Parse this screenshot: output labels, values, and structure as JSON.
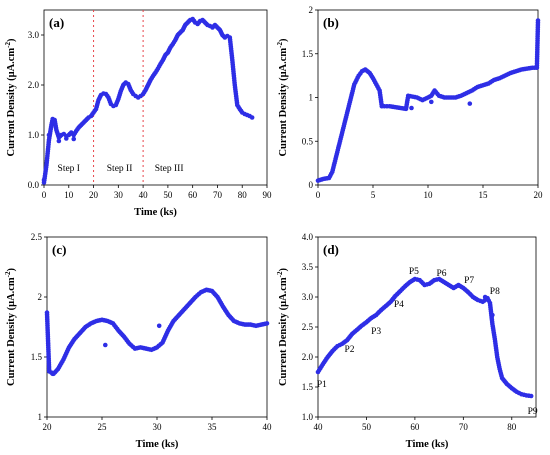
{
  "figure_labels": {
    "time_axis": "Time (ks)",
    "current_axis_html": "Current Density (μA.cm⁻²)"
  },
  "chart_data": [
    {
      "type": "scatter",
      "panel_label": "(a)",
      "xlabel": "Time (ks)",
      "ylabel": "Current Density (μA.cm⁻²)",
      "xlim": [
        0,
        90
      ],
      "ylim": [
        0,
        3.5
      ],
      "xticks": [
        0,
        10,
        20,
        30,
        40,
        50,
        60,
        70,
        80,
        90
      ],
      "yticks": [
        0.0,
        1.0,
        2.0,
        3.0
      ],
      "ytick_labels": [
        "0.0",
        "1.0",
        "2.0",
        "3.0"
      ],
      "color": "#2e2ee6",
      "series": [
        {
          "curve": [
            [
              0,
              0.05
            ],
            [
              1,
              0.4
            ],
            [
              2,
              0.9
            ],
            [
              3,
              1.2
            ],
            [
              3.5,
              1.32
            ],
            [
              4.3,
              1.3
            ],
            [
              5,
              1.1
            ],
            [
              6,
              0.95
            ],
            [
              7,
              1.0
            ],
            [
              8,
              1.02
            ],
            [
              9,
              0.98
            ],
            [
              10,
              1.0
            ],
            [
              11,
              1.05
            ],
            [
              12,
              1.0
            ],
            [
              13,
              1.08
            ],
            [
              14,
              1.15
            ],
            [
              15,
              1.2
            ],
            [
              16,
              1.25
            ],
            [
              17,
              1.3
            ],
            [
              18,
              1.35
            ],
            [
              19,
              1.38
            ],
            [
              20,
              1.45
            ],
            [
              21,
              1.52
            ],
            [
              22,
              1.7
            ],
            [
              23,
              1.8
            ],
            [
              24,
              1.83
            ],
            [
              25,
              1.82
            ],
            [
              26,
              1.75
            ],
            [
              27,
              1.62
            ],
            [
              28,
              1.58
            ],
            [
              29,
              1.6
            ],
            [
              30,
              1.72
            ],
            [
              31,
              1.88
            ],
            [
              32,
              2.0
            ],
            [
              33,
              2.05
            ],
            [
              34,
              2.02
            ],
            [
              35,
              1.9
            ],
            [
              36,
              1.82
            ],
            [
              37,
              1.78
            ],
            [
              38,
              1.75
            ],
            [
              39,
              1.78
            ],
            [
              40,
              1.82
            ],
            [
              41,
              1.9
            ],
            [
              42,
              2.0
            ],
            [
              43,
              2.1
            ],
            [
              44,
              2.18
            ],
            [
              45,
              2.25
            ],
            [
              46,
              2.33
            ],
            [
              47,
              2.42
            ],
            [
              48,
              2.5
            ],
            [
              49,
              2.6
            ],
            [
              50,
              2.65
            ],
            [
              51,
              2.75
            ],
            [
              52,
              2.82
            ],
            [
              53,
              2.9
            ],
            [
              54,
              3.0
            ],
            [
              55,
              3.05
            ],
            [
              56,
              3.1
            ],
            [
              57,
              3.2
            ],
            [
              58,
              3.25
            ],
            [
              59,
              3.3
            ],
            [
              60,
              3.32
            ],
            [
              61,
              3.25
            ],
            [
              62,
              3.22
            ],
            [
              63,
              3.28
            ],
            [
              64,
              3.3
            ],
            [
              65,
              3.25
            ],
            [
              66,
              3.2
            ],
            [
              67,
              3.18
            ],
            [
              68,
              3.15
            ],
            [
              69,
              3.2
            ],
            [
              70,
              3.15
            ],
            [
              71,
              3.1
            ],
            [
              72,
              3.0
            ],
            [
              73,
              2.95
            ],
            [
              74,
              2.98
            ],
            [
              75,
              2.95
            ],
            [
              76,
              2.5
            ],
            [
              77,
              2.0
            ],
            [
              78,
              1.6
            ],
            [
              79,
              1.52
            ],
            [
              80,
              1.45
            ],
            [
              81,
              1.42
            ],
            [
              82,
              1.4
            ],
            [
              83,
              1.38
            ],
            [
              84,
              1.35
            ]
          ]
        }
      ],
      "extra_points": [
        [
          2,
          1.0
        ],
        [
          6,
          0.88
        ],
        [
          9,
          0.93
        ],
        [
          12,
          0.92
        ],
        [
          0,
          0.1
        ]
      ],
      "vlines": [
        20,
        40
      ],
      "annotations": [
        {
          "text": "Step I",
          "x": 10,
          "y": 0.28
        },
        {
          "text": "Step II",
          "x": 30.5,
          "y": 0.28
        },
        {
          "text": "Step III",
          "x": 50.5,
          "y": 0.28
        }
      ]
    },
    {
      "type": "scatter",
      "panel_label": "(b)",
      "xlabel": "",
      "ylabel": "Current Density (μA.cm⁻²)",
      "xlim": [
        0,
        20
      ],
      "ylim": [
        0,
        2
      ],
      "xticks": [
        0,
        5,
        10,
        15,
        20
      ],
      "yticks": [
        0,
        0.5,
        1,
        1.5,
        2
      ],
      "ytick_labels": [
        "0",
        "0.5",
        "1",
        "1.5",
        "2"
      ],
      "color": "#2e2ee6",
      "series": [
        {
          "curve": [
            [
              0,
              0.05
            ],
            [
              0.5,
              0.07
            ],
            [
              1,
              0.08
            ],
            [
              1.3,
              0.15
            ],
            [
              1.7,
              0.35
            ],
            [
              2.2,
              0.6
            ],
            [
              2.7,
              0.85
            ],
            [
              3,
              1.0
            ],
            [
              3.3,
              1.15
            ],
            [
              3.7,
              1.25
            ],
            [
              4,
              1.3
            ],
            [
              4.3,
              1.32
            ],
            [
              4.7,
              1.28
            ],
            [
              5,
              1.22
            ],
            [
              5.3,
              1.15
            ],
            [
              5.6,
              1.08
            ],
            [
              5.8,
              0.9
            ],
            [
              6.5,
              0.9
            ],
            [
              7,
              0.89
            ],
            [
              7.5,
              0.88
            ],
            [
              8,
              0.87
            ],
            [
              8.2,
              1.02
            ],
            [
              9,
              1.0
            ],
            [
              9.5,
              0.97
            ],
            [
              10,
              1.0
            ],
            [
              10.3,
              1.02
            ],
            [
              10.6,
              1.08
            ],
            [
              11,
              1.02
            ],
            [
              11.5,
              1.0
            ],
            [
              12,
              1.0
            ],
            [
              12.5,
              1.0
            ],
            [
              13,
              1.02
            ],
            [
              13.5,
              1.05
            ],
            [
              14,
              1.08
            ],
            [
              14.5,
              1.12
            ],
            [
              15,
              1.14
            ],
            [
              15.5,
              1.16
            ],
            [
              16,
              1.2
            ],
            [
              16.5,
              1.22
            ],
            [
              17,
              1.25
            ],
            [
              17.5,
              1.28
            ],
            [
              18,
              1.3
            ],
            [
              18.5,
              1.32
            ],
            [
              19,
              1.33
            ],
            [
              19.5,
              1.34
            ],
            [
              19.9,
              1.34
            ],
            [
              20,
              1.88
            ]
          ]
        }
      ],
      "extra_points": [
        [
          8.5,
          0.88
        ],
        [
          10.3,
          0.95
        ],
        [
          13.8,
          0.93
        ]
      ]
    },
    {
      "type": "scatter",
      "panel_label": "(c)",
      "xlabel": "Time (ks)",
      "ylabel": "Current Density (μA.cm⁻²)",
      "xlim": [
        20,
        40
      ],
      "ylim": [
        1,
        2.5
      ],
      "xticks": [
        20,
        25,
        30,
        35,
        40
      ],
      "yticks": [
        1,
        1.5,
        2,
        2.5
      ],
      "ytick_labels": [
        "1",
        "1.5",
        "2",
        "2.5"
      ],
      "color": "#2e2ee6",
      "series": [
        {
          "curve": [
            [
              20,
              1.87
            ],
            [
              20.2,
              1.38
            ],
            [
              20.6,
              1.36
            ],
            [
              21,
              1.4
            ],
            [
              21.5,
              1.48
            ],
            [
              22,
              1.58
            ],
            [
              22.5,
              1.65
            ],
            [
              23,
              1.7
            ],
            [
              23.5,
              1.75
            ],
            [
              24,
              1.78
            ],
            [
              24.5,
              1.8
            ],
            [
              25,
              1.81
            ],
            [
              25.5,
              1.8
            ],
            [
              26,
              1.78
            ],
            [
              26.5,
              1.72
            ],
            [
              27,
              1.67
            ],
            [
              27.5,
              1.61
            ],
            [
              28,
              1.57
            ],
            [
              28.5,
              1.58
            ],
            [
              29,
              1.57
            ],
            [
              29.5,
              1.56
            ],
            [
              30,
              1.58
            ],
            [
              30.5,
              1.62
            ],
            [
              31,
              1.72
            ],
            [
              31.5,
              1.8
            ],
            [
              32,
              1.85
            ],
            [
              32.5,
              1.9
            ],
            [
              33,
              1.95
            ],
            [
              33.5,
              2.0
            ],
            [
              34,
              2.04
            ],
            [
              34.5,
              2.06
            ],
            [
              35,
              2.05
            ],
            [
              35.5,
              2.0
            ],
            [
              36,
              1.92
            ],
            [
              36.5,
              1.85
            ],
            [
              37,
              1.8
            ],
            [
              37.5,
              1.78
            ],
            [
              38,
              1.77
            ],
            [
              38.5,
              1.77
            ],
            [
              39,
              1.76
            ],
            [
              39.5,
              1.77
            ],
            [
              40,
              1.78
            ]
          ]
        }
      ],
      "extra_points": [
        [
          25.3,
          1.6
        ],
        [
          30.2,
          1.76
        ],
        [
          20.5,
          1.36
        ]
      ]
    },
    {
      "type": "scatter",
      "panel_label": "(d)",
      "xlabel": "Time (ks)",
      "ylabel": "Current Density (μA.cm⁻²)",
      "xlim": [
        40,
        85
      ],
      "ylim": [
        1.0,
        4.0
      ],
      "xticks": [
        40,
        50,
        60,
        70,
        80
      ],
      "yticks": [
        1.0,
        1.5,
        2.0,
        2.5,
        3.0,
        3.5,
        4.0
      ],
      "ytick_labels": [
        "1.0",
        "1.5",
        "2.0",
        "2.5",
        "3.0",
        "3.5",
        "4.0"
      ],
      "color": "#2e2ee6",
      "series": [
        {
          "curve": [
            [
              40,
              1.75
            ],
            [
              41,
              1.88
            ],
            [
              42,
              2.0
            ],
            [
              43,
              2.1
            ],
            [
              44,
              2.18
            ],
            [
              45,
              2.22
            ],
            [
              46,
              2.28
            ],
            [
              47,
              2.38
            ],
            [
              48,
              2.45
            ],
            [
              49,
              2.52
            ],
            [
              50,
              2.58
            ],
            [
              51,
              2.65
            ],
            [
              52,
              2.7
            ],
            [
              53,
              2.78
            ],
            [
              54,
              2.85
            ],
            [
              55,
              2.92
            ],
            [
              56,
              3.02
            ],
            [
              57,
              3.1
            ],
            [
              58,
              3.18
            ],
            [
              59,
              3.25
            ],
            [
              60,
              3.3
            ],
            [
              61,
              3.28
            ],
            [
              62,
              3.2
            ],
            [
              63,
              3.22
            ],
            [
              64,
              3.28
            ],
            [
              65,
              3.3
            ],
            [
              66,
              3.25
            ],
            [
              67,
              3.2
            ],
            [
              68,
              3.15
            ],
            [
              69,
              3.2
            ],
            [
              70,
              3.15
            ],
            [
              71,
              3.08
            ],
            [
              72,
              3.0
            ],
            [
              73,
              2.95
            ],
            [
              74,
              2.92
            ],
            [
              75,
              2.98
            ],
            [
              75.5,
              2.9
            ],
            [
              76,
              2.55
            ],
            [
              76.5,
              2.3
            ],
            [
              77,
              2.0
            ],
            [
              77.5,
              1.8
            ],
            [
              78,
              1.65
            ],
            [
              79,
              1.55
            ],
            [
              80,
              1.48
            ],
            [
              81,
              1.42
            ],
            [
              82,
              1.38
            ],
            [
              83,
              1.36
            ],
            [
              84,
              1.35
            ]
          ]
        }
      ],
      "extra_points": [
        [
          74.5,
          3.0
        ],
        [
          76,
          2.7
        ]
      ],
      "annotations": [
        {
          "text": "P1",
          "x": 40.8,
          "y": 1.5
        },
        {
          "text": "P2",
          "x": 46.5,
          "y": 2.08
        },
        {
          "text": "P3",
          "x": 52.0,
          "y": 2.38
        },
        {
          "text": "P4",
          "x": 56.7,
          "y": 2.83
        },
        {
          "text": "P5",
          "x": 59.8,
          "y": 3.38
        },
        {
          "text": "P6",
          "x": 65.5,
          "y": 3.35
        },
        {
          "text": "P7",
          "x": 71.2,
          "y": 3.23
        },
        {
          "text": "P8",
          "x": 76.5,
          "y": 3.05
        },
        {
          "text": "P9",
          "x": 84.3,
          "y": 1.05
        }
      ]
    }
  ]
}
